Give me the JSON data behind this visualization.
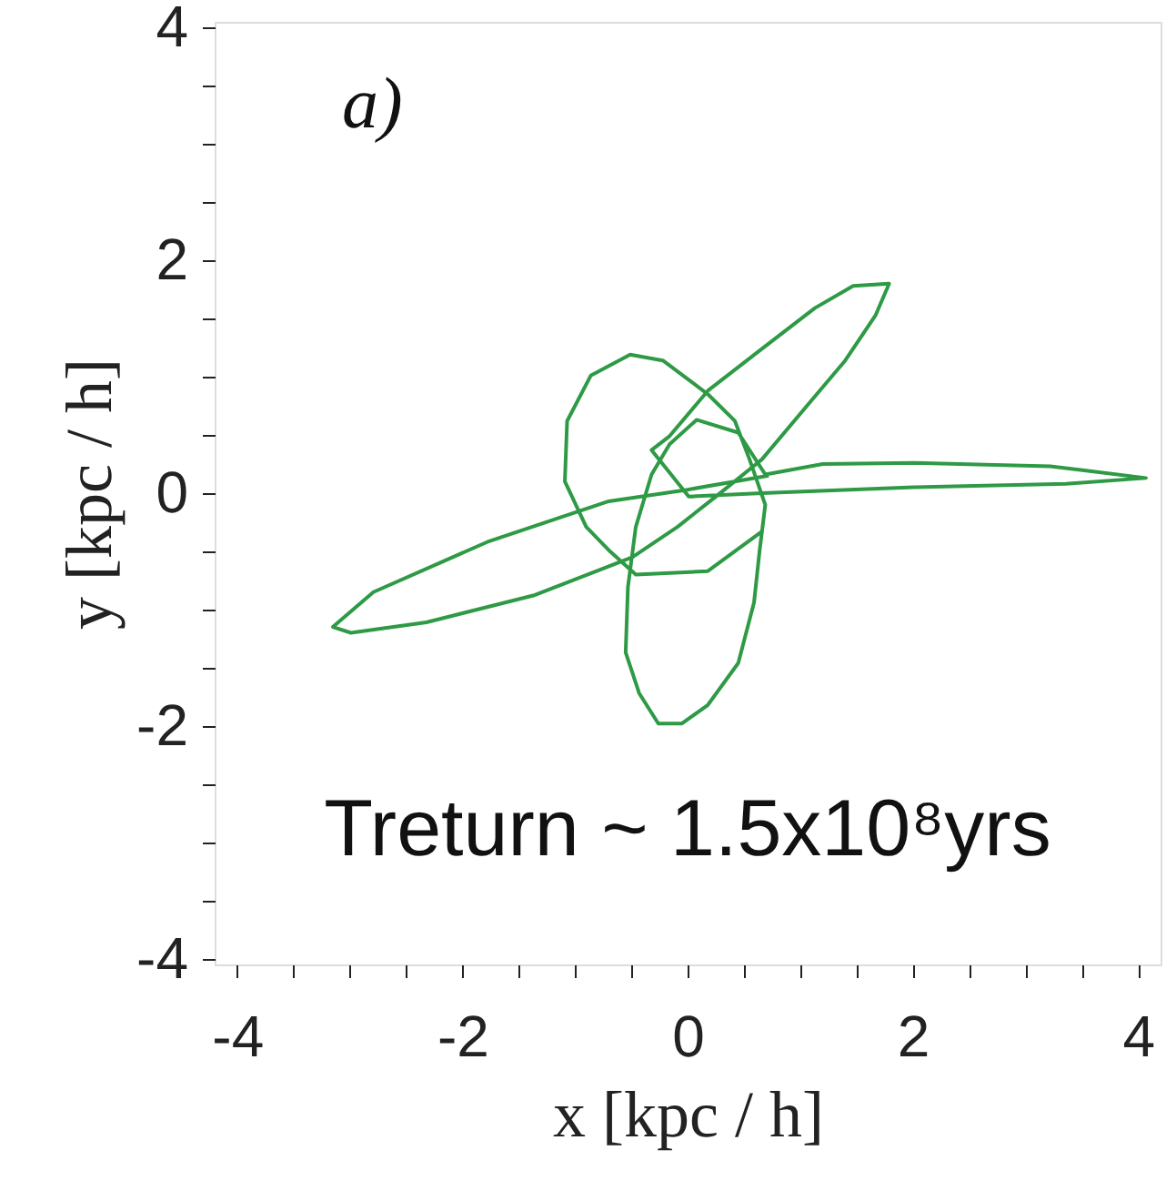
{
  "chart_data": {
    "type": "line",
    "xlabel": "x  [kpc / h]",
    "ylabel": "y  [kpc / h]",
    "annotations": [
      "a)",
      "Treturn ~ 1.5x10⁸yrs"
    ],
    "xlim": [
      -4.2,
      4.2
    ],
    "ylim": [
      -4.05,
      4.05
    ],
    "xticks": [
      -4,
      {
        "value": -3.5,
        "label": null
      },
      {
        "value": -3,
        "label": null
      },
      {
        "value": -2.5,
        "label": null
      },
      -2,
      {
        "value": -1.5,
        "label": null
      },
      {
        "value": -1,
        "label": null
      },
      {
        "value": -0.5,
        "label": null
      },
      0,
      {
        "value": 0.5,
        "label": null
      },
      {
        "value": 1,
        "label": null
      },
      {
        "value": 1.5,
        "label": null
      },
      2,
      {
        "value": 2.5,
        "label": null
      },
      {
        "value": 3,
        "label": null
      },
      {
        "value": 3.5,
        "label": null
      },
      4
    ],
    "yticks": [
      -4,
      {
        "value": -3.5,
        "label": null
      },
      {
        "value": -3,
        "label": null
      },
      {
        "value": -2.5,
        "label": null
      },
      -2,
      {
        "value": -1.5,
        "label": null
      },
      {
        "value": -1,
        "label": null
      },
      {
        "value": -0.5,
        "label": null
      },
      0,
      {
        "value": 0.5,
        "label": null
      },
      {
        "value": 1,
        "label": null
      },
      {
        "value": 1.5,
        "label": null
      },
      2,
      {
        "value": 2.5,
        "label": null
      },
      {
        "value": 3,
        "label": null
      },
      {
        "value": 3.5,
        "label": null
      },
      4
    ],
    "grid": false,
    "marker": "none",
    "line_style": "solid",
    "series": [
      {
        "color": "#2e9a45",
        "x": [
          0.66,
          0.18,
          -0.46,
          -0.7,
          -0.9,
          -1.09,
          -1.07,
          -0.86,
          -0.51,
          -0.22,
          0.18,
          0.42,
          0.55,
          0.69,
          0.64,
          0.59,
          0.45,
          0.18,
          -0.05,
          -0.26,
          -0.43,
          -0.55,
          -0.53,
          -0.46,
          -0.32,
          -0.16,
          0.08,
          0.45,
          0.69,
          1.2,
          2.01,
          3.22,
          3.49,
          4.07,
          3.36,
          2.01,
          0.66,
          0.01,
          -0.32,
          -0.16,
          0.18,
          0.66,
          1.13,
          1.47,
          1.79,
          1.67,
          1.4,
          1.06,
          0.66,
          0.25,
          -0.09,
          -0.49,
          -1.37,
          -2.32,
          -2.99,
          -3.15,
          -2.79,
          -1.78,
          -0.7,
          0.0,
          0.72
        ],
        "values": [
          -0.33,
          -0.67,
          -0.7,
          -0.49,
          -0.29,
          0.1,
          0.62,
          1.01,
          1.19,
          1.14,
          0.85,
          0.62,
          0.29,
          -0.1,
          -0.49,
          -0.94,
          -1.46,
          -1.82,
          -1.98,
          -1.98,
          -1.72,
          -1.37,
          -0.81,
          -0.29,
          0.16,
          0.42,
          0.63,
          0.52,
          0.16,
          0.25,
          0.26,
          0.23,
          0.2,
          0.13,
          0.08,
          0.05,
          0.0,
          -0.03,
          0.37,
          0.49,
          0.88,
          1.24,
          1.59,
          1.78,
          1.8,
          1.53,
          1.14,
          0.75,
          0.29,
          -0.03,
          -0.29,
          -0.55,
          -0.88,
          -1.11,
          -1.2,
          -1.15,
          -0.85,
          -0.42,
          -0.07,
          0.03,
          0.15
        ]
      }
    ]
  }
}
